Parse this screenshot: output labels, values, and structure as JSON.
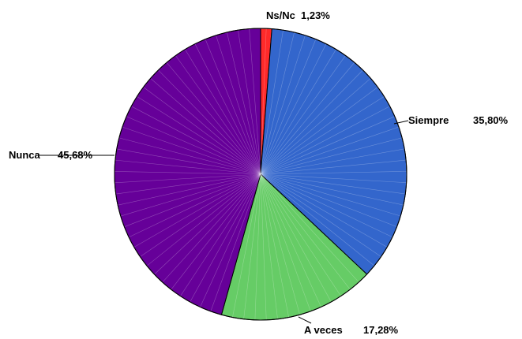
{
  "chart_data": {
    "type": "pie",
    "title": "",
    "legend": "none",
    "slices": [
      {
        "label": "Ns/Nc",
        "value": 1.23,
        "value_text": "1,23%",
        "color": "#ff2a2a"
      },
      {
        "label": "Siempre",
        "value": 35.8,
        "value_text": "35,80%",
        "color": "#3366cc"
      },
      {
        "label": "A veces",
        "value": 17.28,
        "value_text": "17,28%",
        "color": "#66cc66"
      },
      {
        "label": "Nunca",
        "value": 45.68,
        "value_text": "45,68%",
        "color": "#660099"
      }
    ]
  }
}
